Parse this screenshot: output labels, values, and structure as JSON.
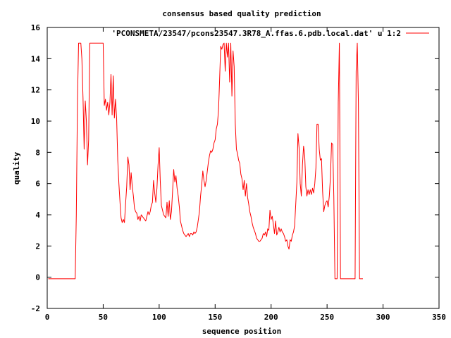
{
  "chart_data": {
    "type": "line",
    "title": "consensus based quality prediction",
    "xlabel": "sequence position",
    "ylabel": "quality",
    "xlim": [
      0,
      350
    ],
    "ylim": [
      -2,
      16
    ],
    "x_ticks": [
      0,
      50,
      100,
      150,
      200,
      250,
      300,
      350
    ],
    "y_ticks": [
      -2,
      0,
      2,
      4,
      6,
      8,
      10,
      12,
      14,
      16
    ],
    "grid": false,
    "legend_position": "top-right",
    "series": [
      {
        "name": "'PCONSMETA/23547/pcons23547.3R78_A.ffas.6.pdb.local.dat' u 1:2",
        "color": "#ff0000",
        "points": [
          [
            1,
            -0.1
          ],
          [
            25,
            -0.1
          ],
          [
            26,
            4
          ],
          [
            27,
            11.2
          ],
          [
            28,
            15
          ],
          [
            30,
            15
          ],
          [
            31,
            14
          ],
          [
            32,
            11.5
          ],
          [
            33,
            8.2
          ],
          [
            34,
            11.3
          ],
          [
            35,
            10
          ],
          [
            36,
            7.2
          ],
          [
            37,
            8.8
          ],
          [
            38,
            15
          ],
          [
            50,
            15
          ],
          [
            51,
            11
          ],
          [
            52,
            11.4
          ],
          [
            53,
            10.7
          ],
          [
            54,
            11.2
          ],
          [
            55,
            10.4
          ],
          [
            56,
            11.2
          ],
          [
            57,
            13
          ],
          [
            58,
            10.4
          ],
          [
            59,
            12.9
          ],
          [
            60,
            10.2
          ],
          [
            61,
            11.4
          ],
          [
            62,
            10.2
          ],
          [
            63,
            7.5
          ],
          [
            64,
            6
          ],
          [
            65,
            4.8
          ],
          [
            66,
            3.8
          ],
          [
            67,
            3.5
          ],
          [
            68,
            3.7
          ],
          [
            69,
            3.5
          ],
          [
            70,
            4.7
          ],
          [
            71,
            5.8
          ],
          [
            72,
            7.7
          ],
          [
            73,
            7.2
          ],
          [
            74,
            5.6
          ],
          [
            75,
            6.7
          ],
          [
            76,
            5.8
          ],
          [
            77,
            5.2
          ],
          [
            78,
            4.4
          ],
          [
            79,
            4.2
          ],
          [
            80,
            4.1
          ],
          [
            81,
            3.7
          ],
          [
            82,
            3.9
          ],
          [
            83,
            3.6
          ],
          [
            84,
            4
          ],
          [
            85,
            3.9
          ],
          [
            86,
            3.8
          ],
          [
            87,
            3.7
          ],
          [
            88,
            3.6
          ],
          [
            89,
            3.9
          ],
          [
            90,
            4.2
          ],
          [
            91,
            4
          ],
          [
            92,
            4.2
          ],
          [
            93,
            4.6
          ],
          [
            94,
            4.8
          ],
          [
            95,
            6.2
          ],
          [
            96,
            5.4
          ],
          [
            97,
            4.8
          ],
          [
            98,
            5.7
          ],
          [
            99,
            7.2
          ],
          [
            100,
            8.3
          ],
          [
            101,
            6.2
          ],
          [
            102,
            4.6
          ],
          [
            103,
            4.3
          ],
          [
            104,
            4
          ],
          [
            105,
            3.9
          ],
          [
            106,
            3.8
          ],
          [
            107,
            4.8
          ],
          [
            108,
            3.9
          ],
          [
            109,
            4.9
          ],
          [
            110,
            3.7
          ],
          [
            111,
            4.2
          ],
          [
            112,
            5.5
          ],
          [
            113,
            6.9
          ],
          [
            114,
            6.1
          ],
          [
            115,
            6.5
          ],
          [
            116,
            5.7
          ],
          [
            117,
            5.2
          ],
          [
            118,
            4.5
          ],
          [
            119,
            3.6
          ],
          [
            120,
            3.3
          ],
          [
            121,
            3
          ],
          [
            122,
            2.8
          ],
          [
            123,
            2.7
          ],
          [
            124,
            2.6
          ],
          [
            125,
            2.7
          ],
          [
            126,
            2.8
          ],
          [
            127,
            2.6
          ],
          [
            128,
            2.8
          ],
          [
            129,
            2.8
          ],
          [
            130,
            2.7
          ],
          [
            131,
            2.9
          ],
          [
            132,
            2.8
          ],
          [
            133,
            2.9
          ],
          [
            134,
            3.2
          ],
          [
            135,
            3.7
          ],
          [
            136,
            4.2
          ],
          [
            137,
            5.2
          ],
          [
            138,
            5.9
          ],
          [
            139,
            6.8
          ],
          [
            140,
            6.2
          ],
          [
            141,
            5.8
          ],
          [
            142,
            6.2
          ],
          [
            143,
            6.8
          ],
          [
            144,
            7.4
          ],
          [
            145,
            7.8
          ],
          [
            146,
            8.1
          ],
          [
            147,
            8
          ],
          [
            148,
            8.2
          ],
          [
            149,
            8.6
          ],
          [
            150,
            8.8
          ],
          [
            151,
            9.5
          ],
          [
            152,
            9.8
          ],
          [
            153,
            10.7
          ],
          [
            154,
            12.6
          ],
          [
            155,
            14.8
          ],
          [
            156,
            14.6
          ],
          [
            157,
            14.9
          ],
          [
            158,
            15
          ],
          [
            159,
            13.2
          ],
          [
            160,
            15
          ],
          [
            161,
            14.1
          ],
          [
            162,
            15
          ],
          [
            163,
            12.5
          ],
          [
            164,
            15
          ],
          [
            165,
            11.6
          ],
          [
            166,
            14.5
          ],
          [
            167,
            13.5
          ],
          [
            168,
            9.8
          ],
          [
            169,
            8.2
          ],
          [
            170,
            7.9
          ],
          [
            171,
            7.5
          ],
          [
            172,
            7.3
          ],
          [
            173,
            6.6
          ],
          [
            174,
            6.3
          ],
          [
            175,
            5.6
          ],
          [
            176,
            6.2
          ],
          [
            177,
            5.2
          ],
          [
            178,
            6
          ],
          [
            179,
            5.1
          ],
          [
            180,
            4.7
          ],
          [
            181,
            4.2
          ],
          [
            182,
            3.9
          ],
          [
            183,
            3.5
          ],
          [
            184,
            3.2
          ],
          [
            185,
            3
          ],
          [
            186,
            2.8
          ],
          [
            187,
            2.5
          ],
          [
            188,
            2.4
          ],
          [
            189,
            2.3
          ],
          [
            190,
            2.3
          ],
          [
            191,
            2.4
          ],
          [
            192,
            2.5
          ],
          [
            193,
            2.8
          ],
          [
            194,
            2.7
          ],
          [
            195,
            2.9
          ],
          [
            196,
            2.6
          ],
          [
            197,
            3.1
          ],
          [
            198,
            3
          ],
          [
            199,
            4.3
          ],
          [
            200,
            3.7
          ],
          [
            201,
            3.9
          ],
          [
            202,
            3.4
          ],
          [
            203,
            2.8
          ],
          [
            204,
            3.6
          ],
          [
            205,
            2.7
          ],
          [
            206,
            2.9
          ],
          [
            207,
            3.2
          ],
          [
            208,
            2.9
          ],
          [
            209,
            3.1
          ],
          [
            210,
            2.9
          ],
          [
            211,
            2.8
          ],
          [
            212,
            2.6
          ],
          [
            213,
            2.3
          ],
          [
            214,
            2.4
          ],
          [
            215,
            2
          ],
          [
            216,
            1.8
          ],
          [
            217,
            2.4
          ],
          [
            218,
            2.3
          ],
          [
            219,
            2.7
          ],
          [
            220,
            2.9
          ],
          [
            221,
            3.3
          ],
          [
            222,
            4.7
          ],
          [
            223,
            6.1
          ],
          [
            224,
            9.2
          ],
          [
            225,
            8.3
          ],
          [
            226,
            6
          ],
          [
            227,
            5.2
          ],
          [
            228,
            7.2
          ],
          [
            229,
            8.4
          ],
          [
            230,
            7.8
          ],
          [
            231,
            5.8
          ],
          [
            232,
            5.2
          ],
          [
            233,
            5.6
          ],
          [
            234,
            5.3
          ],
          [
            235,
            5.6
          ],
          [
            236,
            5.3
          ],
          [
            237,
            5.7
          ],
          [
            238,
            5.4
          ],
          [
            239,
            6
          ],
          [
            240,
            7
          ],
          [
            241,
            9.8
          ],
          [
            242,
            9.8
          ],
          [
            243,
            8.2
          ],
          [
            244,
            7.5
          ],
          [
            245,
            7.6
          ],
          [
            246,
            5.5
          ],
          [
            247,
            4.2
          ],
          [
            248,
            4.6
          ],
          [
            249,
            4.8
          ],
          [
            250,
            4.9
          ],
          [
            251,
            4.5
          ],
          [
            252,
            5.2
          ],
          [
            253,
            6.4
          ],
          [
            254,
            8.6
          ],
          [
            255,
            8.5
          ],
          [
            256,
            5.2
          ],
          [
            257,
            -0.1
          ],
          [
            259,
            -0.1
          ],
          [
            260,
            11.2
          ],
          [
            261,
            15
          ],
          [
            262,
            -0.1
          ],
          [
            275,
            -0.1
          ],
          [
            276,
            13.2
          ],
          [
            277,
            15
          ],
          [
            278,
            11.2
          ],
          [
            279,
            -0.1
          ],
          [
            282,
            -0.1
          ]
        ]
      }
    ]
  }
}
